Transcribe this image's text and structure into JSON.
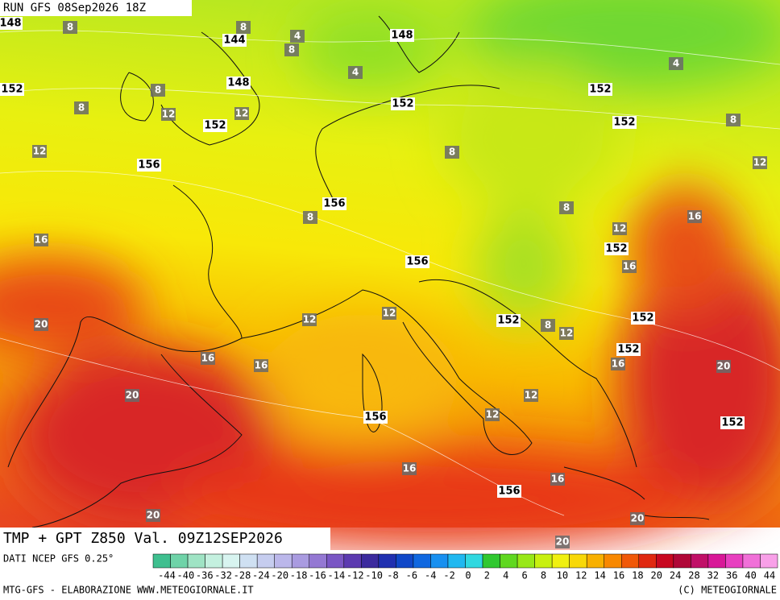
{
  "header": {
    "run": "RUN GFS 08Sep2026 18Z"
  },
  "footer": {
    "title": "TMP + GPT Z850 Val. 09Z12SEP2026",
    "source": "DATI NCEP GFS 0.25°",
    "credit": "MTG-GFS - ELABORAZIONE WWW.METEOGIORNALE.IT",
    "copyright": "(C) METEOGIORNALE"
  },
  "colorbar": {
    "labels": [
      -44,
      -40,
      -36,
      -32,
      -28,
      -24,
      -20,
      -18,
      -16,
      -14,
      -12,
      -10,
      -8,
      -6,
      -4,
      -2,
      0,
      2,
      4,
      6,
      8,
      10,
      12,
      14,
      16,
      18,
      20,
      24,
      28,
      32,
      36,
      40,
      44
    ],
    "colors": [
      "#3fbf8f",
      "#6fd3a8",
      "#9fe3c4",
      "#c4f0df",
      "#d8f4f0",
      "#cfe0f2",
      "#c6cdef",
      "#bbb7ea",
      "#a99be0",
      "#9478d3",
      "#7a56c4",
      "#5c3ab0",
      "#3b2a9e",
      "#2030b0",
      "#1048c8",
      "#1068e0",
      "#1890f0",
      "#20b8f0",
      "#30d8e0",
      "#30c830",
      "#60d820",
      "#98e818",
      "#c8f010",
      "#f0f010",
      "#f8d808",
      "#f8b000",
      "#f88800",
      "#f05808",
      "#e02810",
      "#c80820",
      "#b00838",
      "#c01068",
      "#d81898",
      "#e840c0",
      "#f070d8",
      "#f8a0e8"
    ]
  },
  "map": {
    "geopotential_labels": [
      148,
      144,
      148,
      152,
      148,
      152,
      152,
      152,
      152,
      156,
      156,
      156,
      152,
      152,
      152,
      152,
      156,
      156,
      152
    ],
    "temperature_labels": [
      8,
      8,
      4,
      8,
      4,
      8,
      8,
      12,
      12,
      12,
      8,
      8,
      16,
      12,
      12,
      16,
      16,
      20,
      20,
      12,
      12,
      16,
      16,
      20,
      20,
      20,
      20,
      16,
      12,
      8,
      16,
      12,
      16,
      12,
      8,
      4,
      8
    ]
  }
}
